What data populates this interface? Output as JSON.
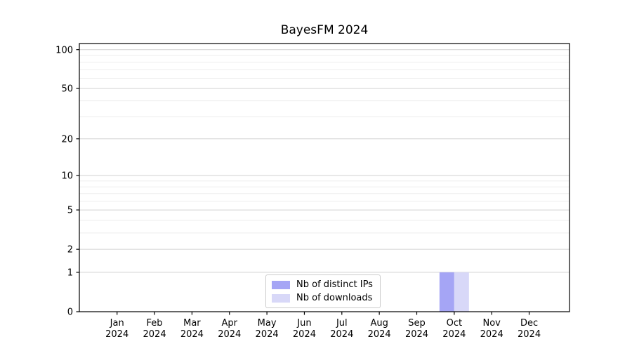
{
  "title": "BayesFM 2024",
  "chart_data": {
    "type": "bar",
    "title": "BayesFM 2024",
    "categories": [
      "Jan 2024",
      "Feb 2024",
      "Mar 2024",
      "Apr 2024",
      "May 2024",
      "Jun 2024",
      "Jul 2024",
      "Aug 2024",
      "Sep 2024",
      "Oct 2024",
      "Nov 2024",
      "Dec 2024"
    ],
    "series": [
      {
        "name": "Nb of distinct IPs",
        "color": "#a5a5f5",
        "values": [
          0,
          0,
          0,
          0,
          0,
          0,
          0,
          0,
          0,
          1,
          0,
          0
        ]
      },
      {
        "name": "Nb of downloads",
        "color": "#d8d8f8",
        "values": [
          0,
          0,
          0,
          0,
          0,
          0,
          0,
          0,
          0,
          1,
          0,
          0
        ]
      }
    ],
    "xlabel": "",
    "ylabel": "",
    "yscale": "log1p",
    "ylim": [
      0,
      100
    ],
    "yticks": [
      0,
      1,
      2,
      5,
      10,
      20,
      50,
      100
    ],
    "yticks_minor": [
      3,
      4,
      6,
      7,
      8,
      9,
      30,
      40,
      60,
      70,
      80,
      90
    ],
    "grid": "horizontal major+minor",
    "legend_position": "lower center"
  },
  "colors": {
    "grid_major": "#d2d2d2",
    "grid_minor": "#ededed",
    "spine": "#000000",
    "legend_border": "#cccccc",
    "background": "#ffffff"
  }
}
